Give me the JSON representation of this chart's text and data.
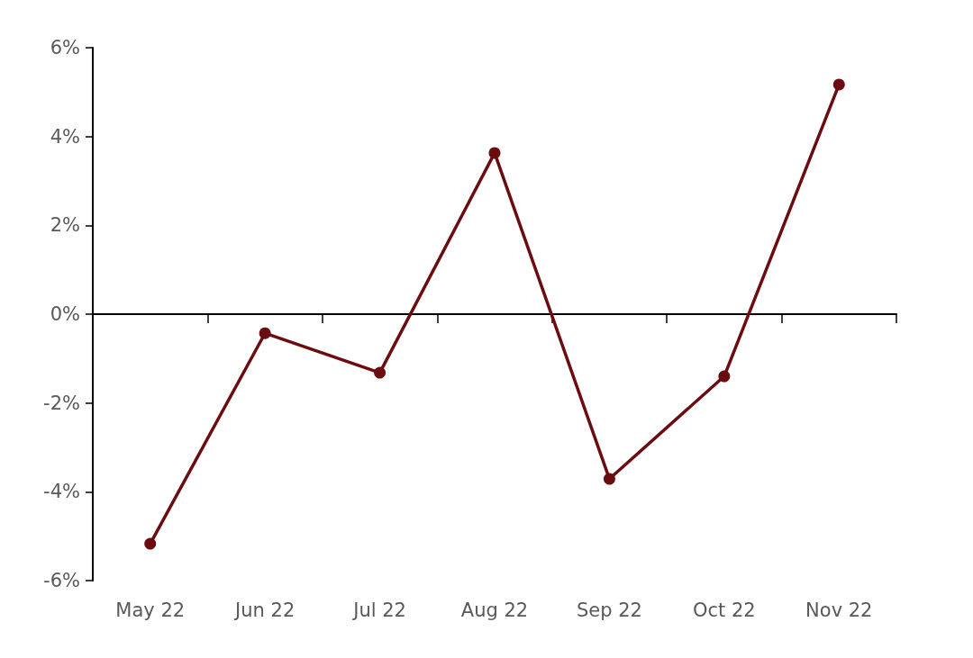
{
  "chart_data": {
    "type": "line",
    "categories": [
      "May 22",
      "Jun 22",
      "Jul 22",
      "Aug 22",
      "Sep 22",
      "Oct 22",
      "Nov 22"
    ],
    "series": [
      {
        "color": "#6b0d10",
        "values": [
          -5.17,
          -0.43,
          -1.32,
          3.63,
          -3.71,
          -1.4,
          5.17
        ]
      }
    ],
    "ylim": [
      -6,
      6
    ],
    "yticks": [
      {
        "value": -6,
        "label": "-6%"
      },
      {
        "value": -4,
        "label": "-4%"
      },
      {
        "value": -2,
        "label": "-2%"
      },
      {
        "value": 0,
        "label": "0%"
      },
      {
        "value": 2,
        "label": "2%"
      },
      {
        "value": 4,
        "label": "4%"
      },
      {
        "value": 6,
        "label": "6%"
      }
    ],
    "marker": "circle",
    "line_style": "solid"
  }
}
